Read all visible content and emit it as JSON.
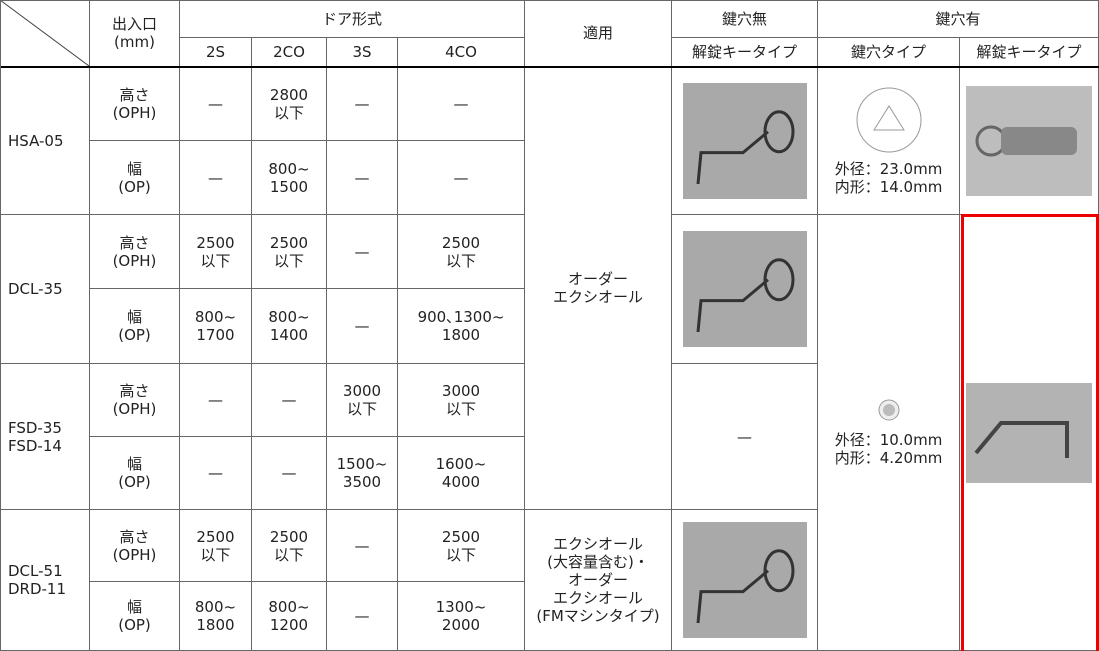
{
  "header": {
    "entrance": "出入口",
    "unit": "(mm)",
    "door_type": "ドア形式",
    "door_types": [
      "2S",
      "2CO",
      "3S",
      "4CO"
    ],
    "application": "適用",
    "no_keyhole": "鍵穴無",
    "no_keyhole_key": "解錠キータイプ",
    "keyhole": "鍵穴有",
    "keyhole_type": "鍵穴タイプ",
    "keyhole_key": "解錠キータイプ"
  },
  "groups": [
    {
      "model": "HSA-05",
      "rows": [
        {
          "dimension": "高さ",
          "code": "(OPH)",
          "values": [
            "—",
            "2800\n以下",
            "—",
            "—"
          ]
        },
        {
          "dimension": "幅",
          "code": "(OP)",
          "values": [
            "—",
            "800~\n1500",
            "—",
            "—"
          ]
        }
      ]
    },
    {
      "model": "DCL-35",
      "rows": [
        {
          "dimension": "高さ",
          "code": "(OPH)",
          "values": [
            "2500\n以下",
            "2500\n以下",
            "—",
            "2500\n以下"
          ]
        },
        {
          "dimension": "幅",
          "code": "(OP)",
          "values": [
            "800~\n1700",
            "800~\n1400",
            "—",
            "900､1300~\n1800"
          ]
        }
      ]
    },
    {
      "model": "FSD-35\nFSD-14",
      "rows": [
        {
          "dimension": "高さ",
          "code": "(OPH)",
          "values": [
            "—",
            "—",
            "3000\n以下",
            "3000\n以下"
          ]
        },
        {
          "dimension": "幅",
          "code": "(OP)",
          "values": [
            "—",
            "—",
            "1500~\n3500",
            "1600~\n4000"
          ]
        }
      ]
    },
    {
      "model": "DCL-51\nDRD-11",
      "rows": [
        {
          "dimension": "高さ",
          "code": "(OPH)",
          "values": [
            "2500\n以下",
            "2500\n以下",
            "—",
            "2500\n以下"
          ]
        },
        {
          "dimension": "幅",
          "code": "(OP)",
          "values": [
            "800~\n1800",
            "800~\n1200",
            "—",
            "1300~\n2000"
          ]
        }
      ]
    }
  ],
  "applications": [
    "オーダー\nエクシオール",
    "エクシオール\n(大容量含む)・\nオーダー\nエクシオール\n(FMマシンタイプ)"
  ],
  "no_keyhole_dash": "—",
  "keyhole_specs": [
    "外径：23.0mm\n内形：14.0mm",
    "外径：10.0mm\n内形：4.20mm"
  ]
}
